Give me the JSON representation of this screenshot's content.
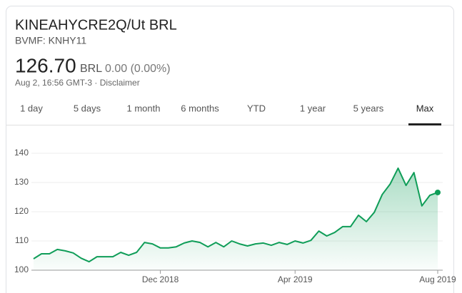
{
  "header": {
    "title": "KINEAHYCRE2Q/Ut BRL",
    "exchange": "BVMF: KNHY11"
  },
  "quote": {
    "price": "126.70",
    "currency": "BRL",
    "change": "0.00 (0.00%)",
    "time": "Aug 2, 16:56 GMT-3 · Disclaimer"
  },
  "tabs": [
    "1 day",
    "5 days",
    "1 month",
    "6 months",
    "YTD",
    "1 year",
    "5 years",
    "Max"
  ],
  "selected_tab": 7,
  "chart_data": {
    "type": "area",
    "categories": [
      null,
      null,
      null,
      null,
      null,
      null,
      null,
      null,
      null,
      null,
      null,
      null,
      null,
      null,
      null,
      null,
      "Dec 2018",
      null,
      null,
      null,
      null,
      null,
      null,
      null,
      null,
      null,
      null,
      null,
      null,
      null,
      null,
      null,
      null,
      "Apr 2019",
      null,
      null,
      null,
      null,
      null,
      null,
      null,
      null,
      null,
      null,
      null,
      null,
      null,
      null,
      null,
      null,
      null,
      "Aug 2019"
    ],
    "series": [
      {
        "color": "#0f9d58",
        "values": [
          103.9,
          105.6,
          105.6,
          107.1,
          106.6,
          105.9,
          104.1,
          102.9,
          104.6,
          104.6,
          104.6,
          106.1,
          105.1,
          106.1,
          109.5,
          109.0,
          107.6,
          107.6,
          108.0,
          109.3,
          110.0,
          109.5,
          108.0,
          109.5,
          108.0,
          110.0,
          109.0,
          108.3,
          109.0,
          109.3,
          108.5,
          109.5,
          108.8,
          110.0,
          109.3,
          110.2,
          113.4,
          111.7,
          112.9,
          114.9,
          114.9,
          118.8,
          116.6,
          119.8,
          125.9,
          129.5,
          134.9,
          129.0,
          133.4,
          122.0,
          125.6,
          126.6
        ]
      }
    ],
    "ylim": [
      100,
      140
    ],
    "yticks": [
      100,
      110,
      120,
      130,
      140
    ],
    "grid": true
  }
}
